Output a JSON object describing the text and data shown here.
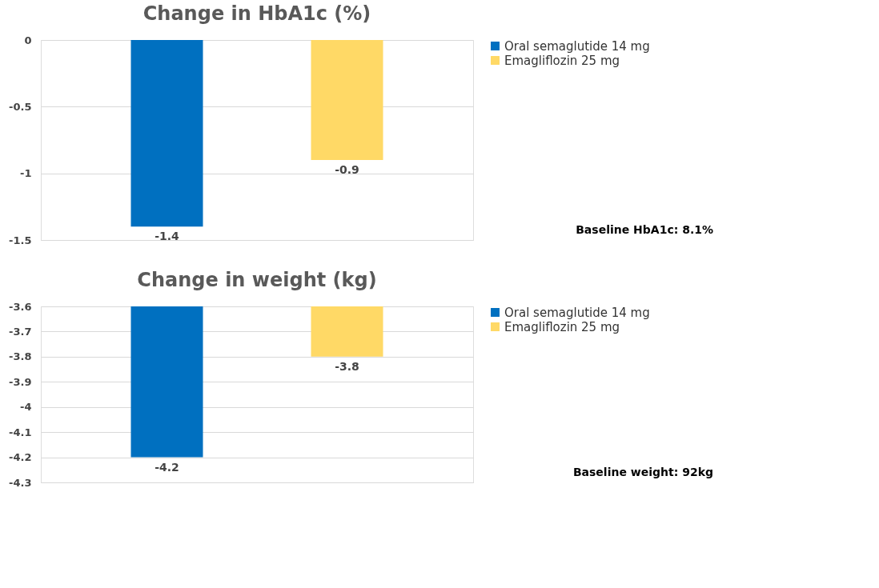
{
  "chart_data": [
    {
      "type": "bar",
      "title": "Change in HbA1c (%)",
      "categories": [
        null,
        null
      ],
      "series": [
        {
          "name": "Oral semaglutide 14 mg",
          "color": "#0070c0",
          "values": [
            -1.4,
            null
          ]
        },
        {
          "name": "Emagliflozin 25 mg",
          "color": "#ffd966",
          "values": [
            null,
            -0.9
          ]
        }
      ],
      "ylim": [
        -1.5,
        0
      ],
      "yticks": [
        0,
        -0.5,
        -1,
        -1.5
      ],
      "grid": "y",
      "legend": "right",
      "tick_labels": "y",
      "data_labels": true,
      "annotations": [
        "Baseline HbA1c: 8.1%"
      ]
    },
    {
      "type": "bar",
      "title": "Change in weight (kg)",
      "categories": [
        null,
        null
      ],
      "series": [
        {
          "name": "Oral semaglutide 14 mg",
          "color": "#0070c0",
          "values": [
            -4.2,
            null
          ]
        },
        {
          "name": "Emagliflozin 25 mg",
          "color": "#ffd966",
          "values": [
            null,
            -3.8
          ]
        }
      ],
      "ylim": [
        -4.3,
        -3.6
      ],
      "yticks": [
        -3.6,
        -3.7,
        -3.8,
        -3.9,
        -4,
        -4.1,
        -4.2,
        -4.3
      ],
      "grid": "y",
      "legend": "right",
      "tick_labels": "y",
      "data_labels": true,
      "annotations": [
        "Baseline weight: 92kg"
      ]
    }
  ]
}
